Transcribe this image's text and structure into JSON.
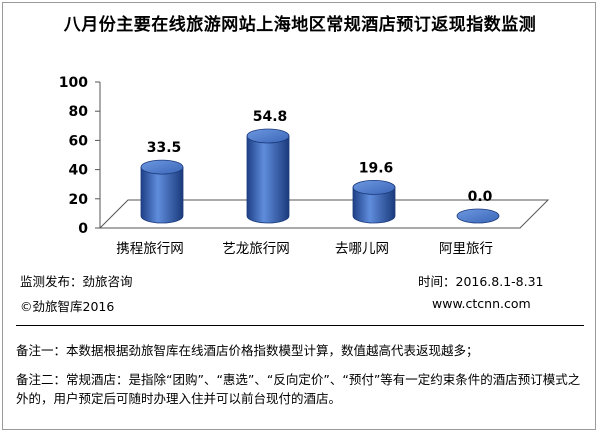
{
  "chart_data": {
    "type": "bar",
    "title": "八月份主要在线旅游网站上海地区常规酒店预订返现指数监测",
    "categories": [
      "携程旅行网",
      "艺龙旅行网",
      "去哪儿网",
      "阿里旅行"
    ],
    "values": [
      33.5,
      54.8,
      19.6,
      0.0
    ],
    "value_labels": [
      "33.5",
      "54.8",
      "19.6",
      "0.0"
    ],
    "yticks": [
      0,
      20,
      40,
      60,
      80,
      100
    ],
    "ylim": [
      0,
      100
    ],
    "xlabel": "",
    "ylabel": "",
    "grid": false,
    "bar_color": "#3a66b8"
  },
  "footer": {
    "source": "监测发布：劲旅咨询",
    "copyright": "©劲旅智库2016",
    "period": "时间：2016.8.1-8.31",
    "website": "www.ctcnn.com"
  },
  "notes": {
    "note1": "备注一：本数据根据劲旅智库在线酒店价格指数模型计算，数值越高代表返现越多；",
    "note2": "备注二：常规酒店：是指除“团购”、“惠选”、“反向定价”、“预付”等有一定约束条件的酒店预订模式之外的，用户预定后可随时办理入住并可以前台现付的酒店。"
  }
}
